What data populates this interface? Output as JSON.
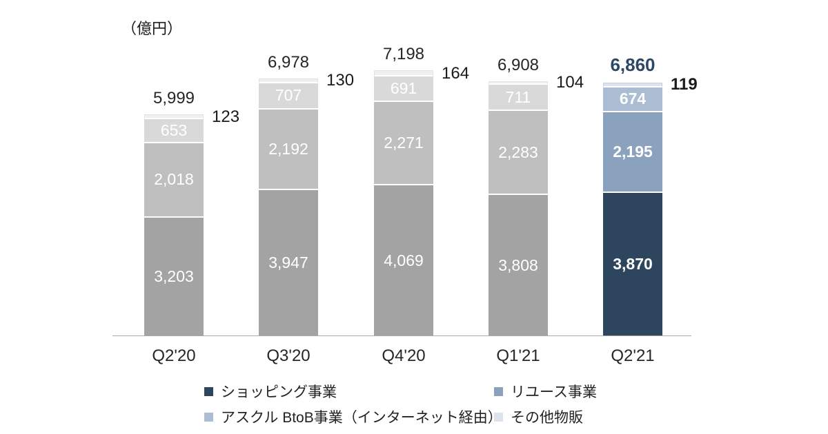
{
  "title": {
    "unit_label": "（億円）"
  },
  "chart_data": {
    "type": "bar",
    "stacked": true,
    "unit": "億円",
    "categories": [
      "Q2'20",
      "Q3'20",
      "Q4'20",
      "Q1'21",
      "Q2'21"
    ],
    "series": [
      {
        "name": "ショッピング事業",
        "values": [
          3203,
          3947,
          4069,
          3808,
          3870
        ]
      },
      {
        "name": "リユース事業",
        "values": [
          2018,
          2192,
          2271,
          2283,
          2195
        ]
      },
      {
        "name": "アスクル BtoB事業（インターネット経由）",
        "values": [
          653,
          707,
          691,
          711,
          674
        ]
      },
      {
        "name": "その他物販",
        "values": [
          123,
          130,
          164,
          104,
          119
        ]
      }
    ],
    "totals": [
      "5,999",
      "6,978",
      "7,198",
      "6,908",
      "6,860"
    ],
    "side_labels": [
      "123",
      "130",
      "164",
      "104",
      "119"
    ],
    "highlight_index": 4,
    "ylim": [
      0,
      7198
    ],
    "grid": false,
    "legend_position": "bottom",
    "colors": {
      "normal": [
        "#a3a3a3",
        "#bfbfbf",
        "#d9d9d9",
        "#f0f0f0"
      ],
      "highlight": [
        "#2e455e",
        "#8ba2bf",
        "#abbdd3",
        "#dde3ed"
      ],
      "thin_seg_border_normal": "#e0e0e0",
      "thin_seg_border_highlight": "#c4cfdf",
      "total_label": "#262626",
      "total_label_highlight": "#2e4764",
      "axis_line": "#a9a9a9",
      "value_label": "#ffffff"
    }
  },
  "legend": {
    "items": [
      {
        "label": "ショッピング事業",
        "color": "#2e455e"
      },
      {
        "label": "リユース事業",
        "color": "#8ba2bf"
      },
      {
        "label": "アスクル BtoB事業（インターネット経由）",
        "color": "#abbdd3"
      },
      {
        "label": "その他物販",
        "color": "#dde3ed"
      }
    ]
  }
}
